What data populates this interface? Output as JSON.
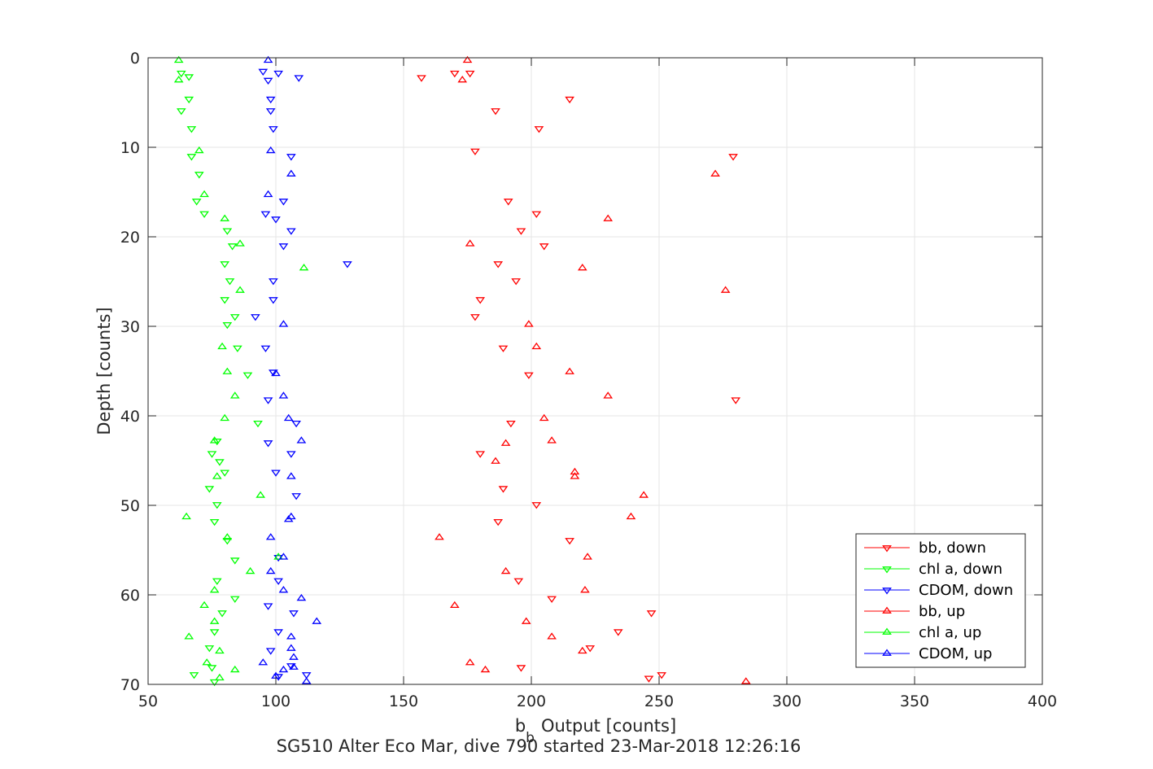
{
  "chart_data": {
    "type": "scatter",
    "title": "SG510 Alter Eco Mar, dive 790 started 23-Mar-2018 12:26:16",
    "xlabel_main": "b",
    "xlabel_sub": "b",
    "xlabel_rest": "Output [counts]",
    "ylabel": "Depth [counts]",
    "xlim": [
      50,
      400
    ],
    "ylim": [
      0,
      70
    ],
    "y_reversed": true,
    "grid": true,
    "legend_position": "bottom-right",
    "xticks": [
      "50",
      "100",
      "150",
      "200",
      "250",
      "300",
      "350",
      "400"
    ],
    "yticks": [
      "0",
      "10",
      "20",
      "30",
      "40",
      "50",
      "60",
      "70"
    ],
    "xtick_values": [
      50,
      100,
      150,
      200,
      250,
      300,
      350,
      400
    ],
    "ytick_values": [
      0,
      10,
      20,
      30,
      40,
      50,
      60,
      70
    ],
    "series": [
      {
        "name": "bb, down",
        "color": "#ff0000",
        "marker": "triangle-down",
        "points": [
          [
            176,
            1.7
          ],
          [
            170,
            1.7
          ],
          [
            157,
            2.2
          ],
          [
            215,
            4.6
          ],
          [
            186,
            5.9
          ],
          [
            203,
            7.9
          ],
          [
            178,
            10.4
          ],
          [
            279,
            11.0
          ],
          [
            191,
            16.0
          ],
          [
            202,
            17.4
          ],
          [
            196,
            19.3
          ],
          [
            205,
            21.0
          ],
          [
            187,
            23.0
          ],
          [
            194,
            24.9
          ],
          [
            180,
            27.0
          ],
          [
            178,
            28.9
          ],
          [
            189,
            32.4
          ],
          [
            199,
            35.4
          ],
          [
            280,
            38.2
          ],
          [
            192,
            40.8
          ],
          [
            180,
            44.2
          ],
          [
            189,
            48.1
          ],
          [
            202,
            49.9
          ],
          [
            187,
            51.8
          ],
          [
            215,
            53.9
          ],
          [
            195,
            58.4
          ],
          [
            208,
            60.4
          ],
          [
            247,
            62.0
          ],
          [
            234,
            64.1
          ],
          [
            223,
            65.9
          ],
          [
            196,
            68.1
          ],
          [
            251,
            68.9
          ],
          [
            246,
            69.3
          ]
        ]
      },
      {
        "name": "chl a, down",
        "color": "#00ff00",
        "marker": "triangle-down",
        "points": [
          [
            63,
            1.7
          ],
          [
            66,
            2.1
          ],
          [
            66,
            4.6
          ],
          [
            63,
            5.9
          ],
          [
            67,
            7.9
          ],
          [
            67,
            11.0
          ],
          [
            70,
            13.0
          ],
          [
            69,
            16.0
          ],
          [
            72,
            17.4
          ],
          [
            81,
            19.3
          ],
          [
            83,
            21.0
          ],
          [
            80,
            23.0
          ],
          [
            82,
            24.9
          ],
          [
            80,
            27.0
          ],
          [
            84,
            28.9
          ],
          [
            81,
            29.8
          ],
          [
            85,
            32.4
          ],
          [
            89,
            35.4
          ],
          [
            93,
            40.8
          ],
          [
            77,
            42.8
          ],
          [
            75,
            44.2
          ],
          [
            78,
            45.1
          ],
          [
            80,
            46.3
          ],
          [
            74,
            48.1
          ],
          [
            77,
            49.9
          ],
          [
            76,
            51.8
          ],
          [
            81,
            53.9
          ],
          [
            84,
            56.1
          ],
          [
            77,
            58.4
          ],
          [
            84,
            60.4
          ],
          [
            79,
            62.0
          ],
          [
            76,
            64.1
          ],
          [
            74,
            65.9
          ],
          [
            75,
            68.1
          ],
          [
            68,
            68.9
          ],
          [
            76,
            69.7
          ]
        ]
      },
      {
        "name": "CDOM, down",
        "color": "#0000ff",
        "marker": "triangle-down",
        "points": [
          [
            95,
            1.5
          ],
          [
            101,
            1.7
          ],
          [
            109,
            2.2
          ],
          [
            97,
            2.5
          ],
          [
            98,
            4.6
          ],
          [
            98,
            5.9
          ],
          [
            99,
            7.9
          ],
          [
            106,
            11.0
          ],
          [
            103,
            16.0
          ],
          [
            96,
            17.4
          ],
          [
            100,
            18.0
          ],
          [
            106,
            19.3
          ],
          [
            103,
            21.0
          ],
          [
            128,
            23.0
          ],
          [
            99,
            24.9
          ],
          [
            99,
            27.0
          ],
          [
            92,
            28.9
          ],
          [
            96,
            32.4
          ],
          [
            99,
            35.1
          ],
          [
            97,
            38.2
          ],
          [
            108,
            40.8
          ],
          [
            97,
            43.0
          ],
          [
            106,
            44.2
          ],
          [
            100,
            46.3
          ],
          [
            108,
            48.9
          ],
          [
            101,
            55.8
          ],
          [
            101,
            58.4
          ],
          [
            97,
            61.2
          ],
          [
            107,
            62.0
          ],
          [
            101,
            64.1
          ],
          [
            98,
            66.2
          ],
          [
            106,
            67.9
          ],
          [
            112,
            68.9
          ],
          [
            101,
            69.1
          ]
        ]
      },
      {
        "name": "bb, up",
        "color": "#ff0000",
        "marker": "triangle-up",
        "points": [
          [
            175,
            0.3
          ],
          [
            173,
            2.5
          ],
          [
            230,
            18.0
          ],
          [
            176,
            20.8
          ],
          [
            220,
            23.5
          ],
          [
            276,
            26.0
          ],
          [
            272,
            13.0
          ],
          [
            199,
            29.8
          ],
          [
            202,
            32.3
          ],
          [
            215,
            35.1
          ],
          [
            230,
            37.8
          ],
          [
            205,
            40.3
          ],
          [
            208,
            42.8
          ],
          [
            190,
            43.1
          ],
          [
            186,
            45.1
          ],
          [
            217,
            46.3
          ],
          [
            217,
            46.8
          ],
          [
            244,
            48.9
          ],
          [
            239,
            51.3
          ],
          [
            164,
            53.6
          ],
          [
            222,
            55.8
          ],
          [
            190,
            57.4
          ],
          [
            221,
            59.5
          ],
          [
            170,
            61.2
          ],
          [
            198,
            63.0
          ],
          [
            208,
            64.7
          ],
          [
            220,
            66.3
          ],
          [
            176,
            67.6
          ],
          [
            182,
            68.4
          ],
          [
            284,
            69.7
          ]
        ]
      },
      {
        "name": "chl a, up",
        "color": "#00ff00",
        "marker": "triangle-up",
        "points": [
          [
            62,
            0.3
          ],
          [
            62,
            2.5
          ],
          [
            70,
            10.4
          ],
          [
            72,
            15.3
          ],
          [
            80,
            18.0
          ],
          [
            86,
            20.8
          ],
          [
            111,
            23.5
          ],
          [
            86,
            26.0
          ],
          [
            79,
            32.3
          ],
          [
            81,
            35.1
          ],
          [
            84,
            37.8
          ],
          [
            80,
            40.3
          ],
          [
            76,
            42.8
          ],
          [
            77,
            46.8
          ],
          [
            94,
            48.9
          ],
          [
            65,
            51.3
          ],
          [
            81,
            53.6
          ],
          [
            101,
            55.8
          ],
          [
            90,
            57.4
          ],
          [
            76,
            59.5
          ],
          [
            72,
            61.2
          ],
          [
            76,
            63.0
          ],
          [
            66,
            64.7
          ],
          [
            78,
            66.3
          ],
          [
            73,
            67.6
          ],
          [
            84,
            68.4
          ],
          [
            78,
            69.3
          ]
        ]
      },
      {
        "name": "CDOM, up",
        "color": "#0000ff",
        "marker": "triangle-up",
        "points": [
          [
            97,
            0.3
          ],
          [
            98,
            10.4
          ],
          [
            106,
            13.0
          ],
          [
            97,
            15.3
          ],
          [
            103,
            29.8
          ],
          [
            100,
            35.3
          ],
          [
            103,
            37.8
          ],
          [
            105,
            40.3
          ],
          [
            110,
            42.8
          ],
          [
            106,
            46.8
          ],
          [
            106,
            51.3
          ],
          [
            105,
            51.6
          ],
          [
            98,
            53.6
          ],
          [
            103,
            55.8
          ],
          [
            98,
            57.4
          ],
          [
            103,
            59.5
          ],
          [
            110,
            60.4
          ],
          [
            116,
            63.0
          ],
          [
            106,
            64.7
          ],
          [
            106,
            66.0
          ],
          [
            107,
            67.0
          ],
          [
            95,
            67.6
          ],
          [
            103,
            68.4
          ],
          [
            107,
            68.1
          ],
          [
            112,
            69.7
          ],
          [
            100,
            69.1
          ]
        ]
      }
    ]
  }
}
